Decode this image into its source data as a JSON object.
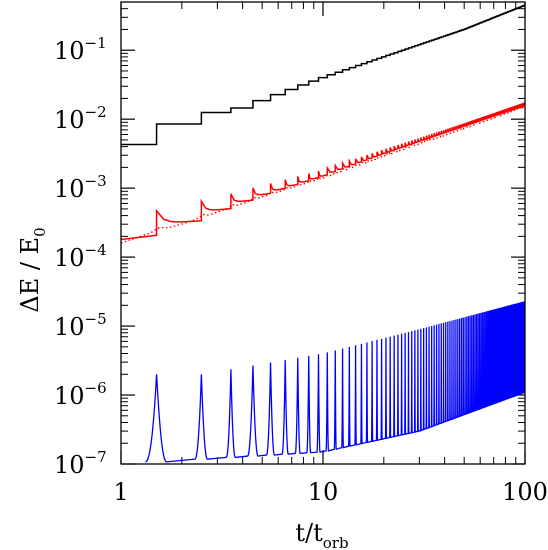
{
  "chart_data": {
    "type": "line",
    "title": "",
    "x_scale": "log",
    "y_scale": "log",
    "xlim": [
      1,
      100
    ],
    "ylim": [
      1e-07,
      0.5
    ],
    "xlabel": {
      "main": "t/t",
      "sub": "orb"
    },
    "ylabel": {
      "main": "ΔE / E",
      "sub": "0"
    },
    "x_ticks": [
      {
        "value": 1,
        "label": "1"
      },
      {
        "value": 10,
        "label": "10"
      },
      {
        "value": 100,
        "label": "100"
      }
    ],
    "y_ticks": [
      {
        "value": 1e-07,
        "base": "10",
        "exp": "−7"
      },
      {
        "value": 1e-06,
        "base": "10",
        "exp": "−6"
      },
      {
        "value": 1e-05,
        "base": "10",
        "exp": "−5"
      },
      {
        "value": 0.0001,
        "base": "10",
        "exp": "−4"
      },
      {
        "value": 0.001,
        "base": "10",
        "exp": "−3"
      },
      {
        "value": 0.01,
        "base": "10",
        "exp": "−2"
      },
      {
        "value": 0.1,
        "base": "10",
        "exp": "−1"
      }
    ],
    "grid": false,
    "legend": "none",
    "series": [
      {
        "color": "#000000",
        "style": "solid",
        "kind": "staircase",
        "jumps_at_half_orbits": true,
        "points": [
          [
            1,
            0.0043
          ],
          [
            1.5,
            0.0043
          ],
          [
            1.5,
            0.0085
          ],
          [
            2.5,
            0.0085
          ],
          [
            2.5,
            0.0125
          ],
          [
            3.5,
            0.0125
          ],
          [
            10,
            0.04
          ],
          [
            20,
            0.08
          ],
          [
            50,
            0.2
          ],
          [
            100,
            0.45
          ]
        ]
      },
      {
        "color": "#ff0000",
        "style": "solid",
        "kind": "spiked-staircase",
        "jumps_at_half_orbits": true,
        "points": [
          [
            1,
            0.00018
          ],
          [
            1.5,
            0.00021
          ],
          [
            1.5,
            0.00042
          ],
          [
            1.6,
            0.00036
          ],
          [
            2.5,
            0.00037
          ],
          [
            2.5,
            0.00058
          ],
          [
            3.5,
            0.00062
          ],
          [
            4.5,
            0.00078
          ],
          [
            10,
            0.0016
          ],
          [
            20,
            0.0033
          ],
          [
            50,
            0.0082
          ],
          [
            100,
            0.017
          ]
        ]
      },
      {
        "color": "#ff0000",
        "style": "dotted",
        "kind": "smooth",
        "points": [
          [
            1,
            0.00016
          ],
          [
            1.5,
            0.00024
          ],
          [
            2,
            0.0003
          ],
          [
            3,
            0.00045
          ],
          [
            5,
            0.00075
          ],
          [
            10,
            0.0014
          ],
          [
            20,
            0.0029
          ],
          [
            50,
            0.0073
          ],
          [
            100,
            0.015
          ]
        ]
      },
      {
        "color": "#0000ff",
        "style": "solid",
        "kind": "periodic-spikes",
        "spike_times": "t = n + 0.5",
        "peak_envelope": [
          [
            1.5,
            2e-06
          ],
          [
            2.5,
            2e-06
          ],
          [
            10,
            4e-06
          ],
          [
            30,
            9e-06
          ],
          [
            100,
            2.3e-05
          ]
        ],
        "floor_envelope": [
          [
            1,
            1e-07
          ],
          [
            10,
            1.5e-07
          ],
          [
            30,
            3e-07
          ],
          [
            100,
            1.1e-06
          ]
        ]
      }
    ]
  }
}
